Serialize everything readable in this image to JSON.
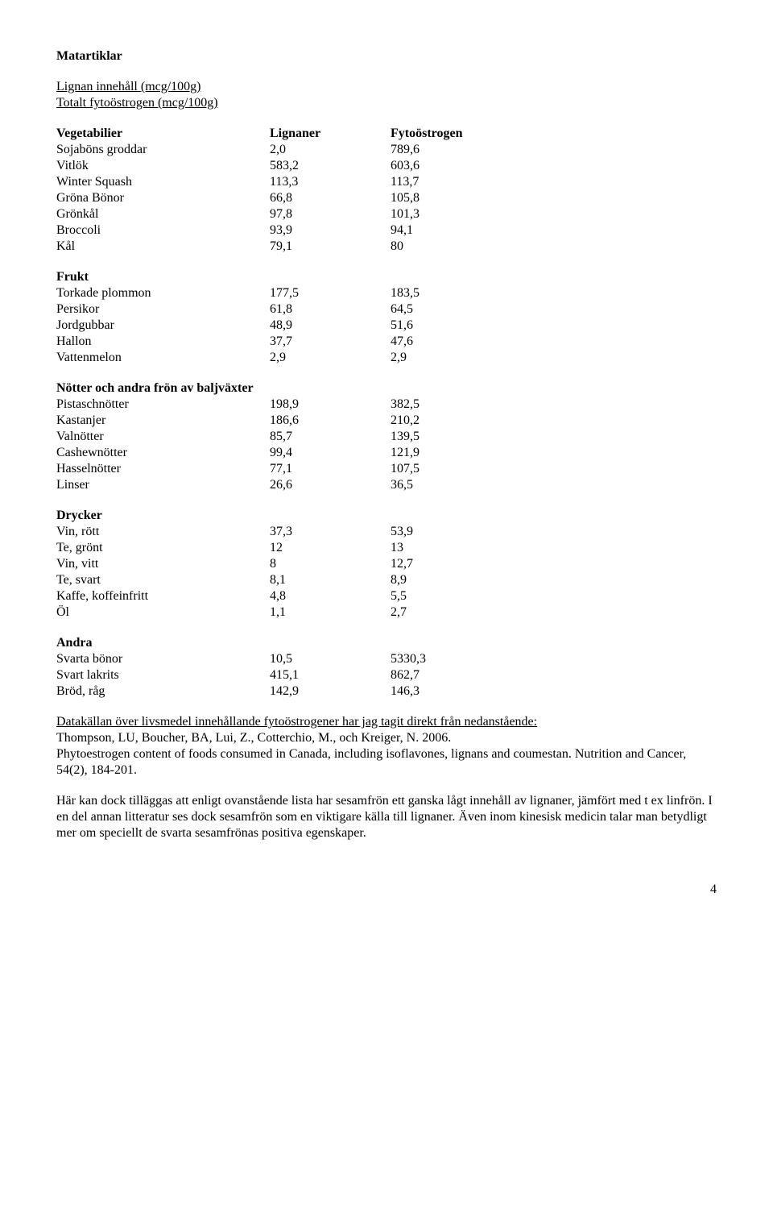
{
  "heading": "Matartiklar",
  "sub1": "Lignan innehåll (mcg/100g)",
  "sub2": "Totalt fytoöstrogen (mcg/100g)",
  "columns": {
    "c0": "Vegetabilier",
    "c1": "Lignaner",
    "c2": "Fytoöstrogen"
  },
  "vegetables": [
    {
      "name": "Sojaböns groddar",
      "v1": "2,0",
      "v2": "789,6"
    },
    {
      "name": "Vitlök",
      "v1": "583,2",
      "v2": "603,6"
    },
    {
      "name": "Winter Squash",
      "v1": "113,3",
      "v2": "113,7"
    },
    {
      "name": "Gröna Bönor",
      "v1": "66,8",
      "v2": "105,8"
    },
    {
      "name": "Grönkål",
      "v1": "97,8",
      "v2": "101,3"
    },
    {
      "name": "Broccoli",
      "v1": "93,9",
      "v2": "94,1"
    },
    {
      "name": "Kål",
      "v1": "79,1",
      "v2": "80"
    }
  ],
  "frukt_title": "Frukt",
  "frukt": [
    {
      "name": "Torkade plommon",
      "v1": "177,5",
      "v2": "183,5"
    },
    {
      "name": "Persikor",
      "v1": "61,8",
      "v2": "64,5"
    },
    {
      "name": "Jordgubbar",
      "v1": "48,9",
      "v2": "51,6"
    },
    {
      "name": "Hallon",
      "v1": "37,7",
      "v2": "47,6"
    },
    {
      "name": "Vattenmelon",
      "v1": "2,9",
      "v2": "2,9"
    }
  ],
  "nuts_title": "Nötter och andra frön av baljväxter",
  "nuts": [
    {
      "name": "Pistaschnötter",
      "v1": "198,9",
      "v2": "382,5"
    },
    {
      "name": "Kastanjer",
      "v1": "186,6",
      "v2": "210,2"
    },
    {
      "name": "Valnötter",
      "v1": "85,7",
      "v2": "139,5"
    },
    {
      "name": "Cashewnötter",
      "v1": "99,4",
      "v2": "121,9"
    },
    {
      "name": "Hasselnötter",
      "v1": "77,1",
      "v2": "107,5"
    },
    {
      "name": "Linser",
      "v1": "26,6",
      "v2": "36,5"
    }
  ],
  "drinks_title": "Drycker",
  "drinks": [
    {
      "name": "Vin, rött",
      "v1": "37,3",
      "v2": "53,9"
    },
    {
      "name": "Te, grönt",
      "v1": "12",
      "v2": "13"
    },
    {
      "name": "Vin, vitt",
      "v1": "8",
      "v2": "12,7"
    },
    {
      "name": "Te, svart",
      "v1": "8,1",
      "v2": "8,9"
    },
    {
      "name": "Kaffe, koffeinfritt",
      "v1": "4,8",
      "v2": "5,5"
    },
    {
      "name": "Öl",
      "v1": "1,1",
      "v2": "2,7"
    }
  ],
  "other_title": "Andra",
  "other": [
    {
      "name": "Svarta bönor",
      "v1": "10,5",
      "v2": "5330,3"
    },
    {
      "name": "Svart lakrits",
      "v1": "415,1",
      "v2": "862,7"
    },
    {
      "name": "Bröd, råg",
      "v1": "142,9",
      "v2": "146,3"
    }
  ],
  "source_line": "Datakällan över livsmedel innehållande fytoöstrogener har jag tagit direkt från nedanstående:",
  "ref1": "Thompson, LU, Boucher, BA, Lui, Z., Cotterchio, M., och Kreiger, N. 2006.",
  "ref2": "Phytoestrogen content of foods consumed in Canada, including isoflavones, lignans and coumestan. Nutrition and Cancer, 54(2), 184-201.",
  "para2": "Här kan dock tilläggas att enligt ovanstående lista har sesamfrön ett ganska lågt innehåll av lignaner, jämfört med t ex linfrön. I en del annan litteratur ses dock sesamfrön som en viktigare källa till lignaner. Även inom kinesisk medicin talar man betydligt mer om speciellt de svarta sesamfrönas positiva egenskaper.",
  "page": "4"
}
